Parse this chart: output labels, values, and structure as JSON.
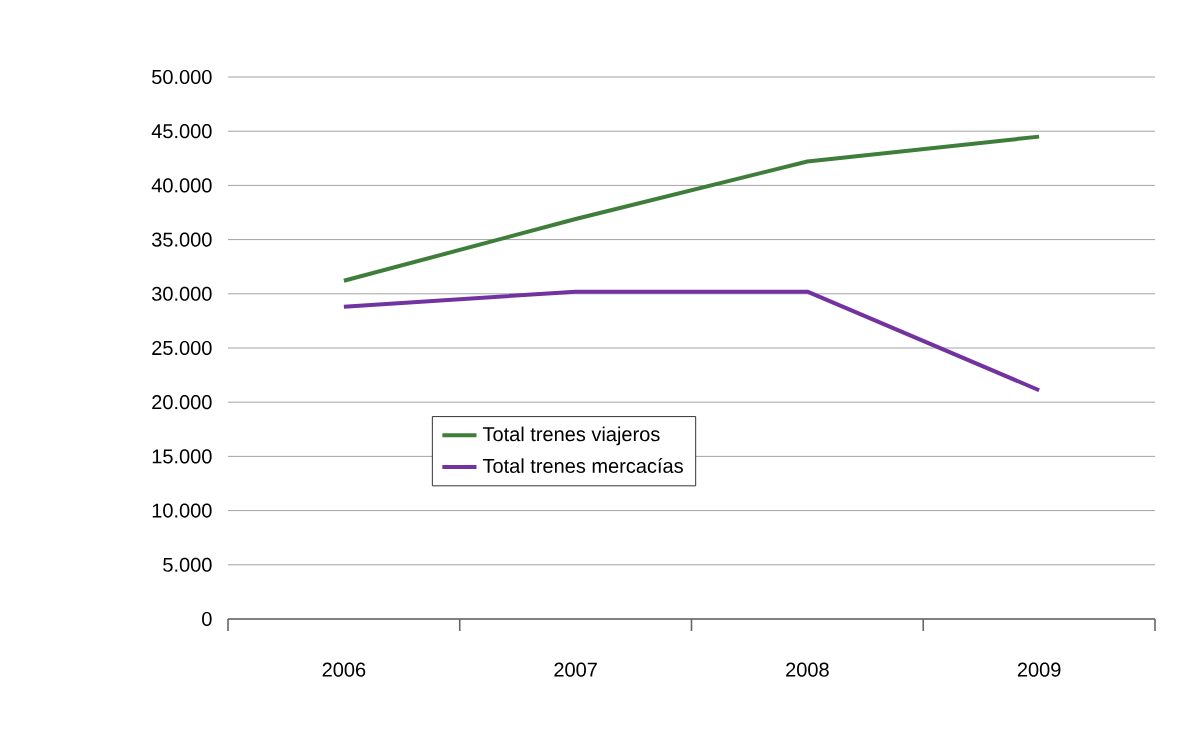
{
  "chart_data": {
    "type": "line",
    "categories": [
      "2006",
      "2007",
      "2008",
      "2009"
    ],
    "series": [
      {
        "name": "Total trenes viajeros",
        "color": "#3f7e3a",
        "values": [
          31200,
          36900,
          42200,
          44500
        ]
      },
      {
        "name": "Total trenes mercacías",
        "color": "#7232a0",
        "values": [
          28800,
          30200,
          30200,
          21100
        ]
      }
    ],
    "ylim": [
      0,
      50000
    ],
    "yticks": [
      {
        "value": 0,
        "label": "0"
      },
      {
        "value": 5000,
        "label": "5.000"
      },
      {
        "value": 10000,
        "label": "10.000"
      },
      {
        "value": 15000,
        "label": "15.000"
      },
      {
        "value": 20000,
        "label": "20.000"
      },
      {
        "value": 25000,
        "label": "25.000"
      },
      {
        "value": 30000,
        "label": "30.000"
      },
      {
        "value": 35000,
        "label": "35.000"
      },
      {
        "value": 40000,
        "label": "40.000"
      },
      {
        "value": 45000,
        "label": "45.000"
      },
      {
        "value": 50000,
        "label": "50.000"
      }
    ],
    "grid": "y",
    "legend": "bottom left",
    "marker": "none",
    "line_style": "solid"
  }
}
